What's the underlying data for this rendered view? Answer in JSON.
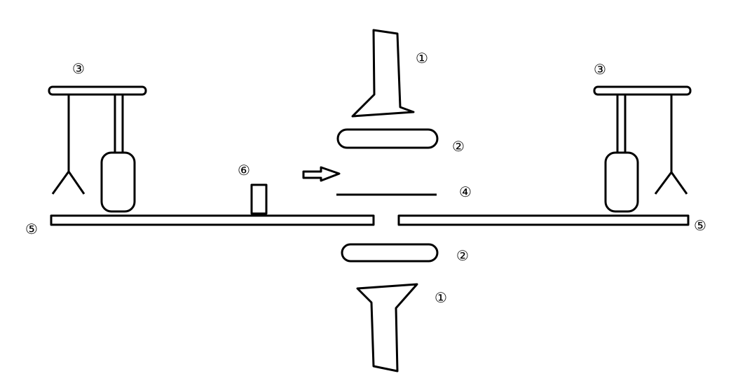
{
  "labels": {
    "top_nozzle": "①",
    "bottom_nozzle": "①",
    "top_lens": "②",
    "bottom_lens": "②",
    "left_gantry": "③",
    "right_gantry": "③",
    "plate": "④",
    "left_rail": "⑤",
    "right_rail": "⑤",
    "block": "⑥"
  },
  "colors": {
    "stroke": "#000000",
    "background": "#ffffff"
  }
}
